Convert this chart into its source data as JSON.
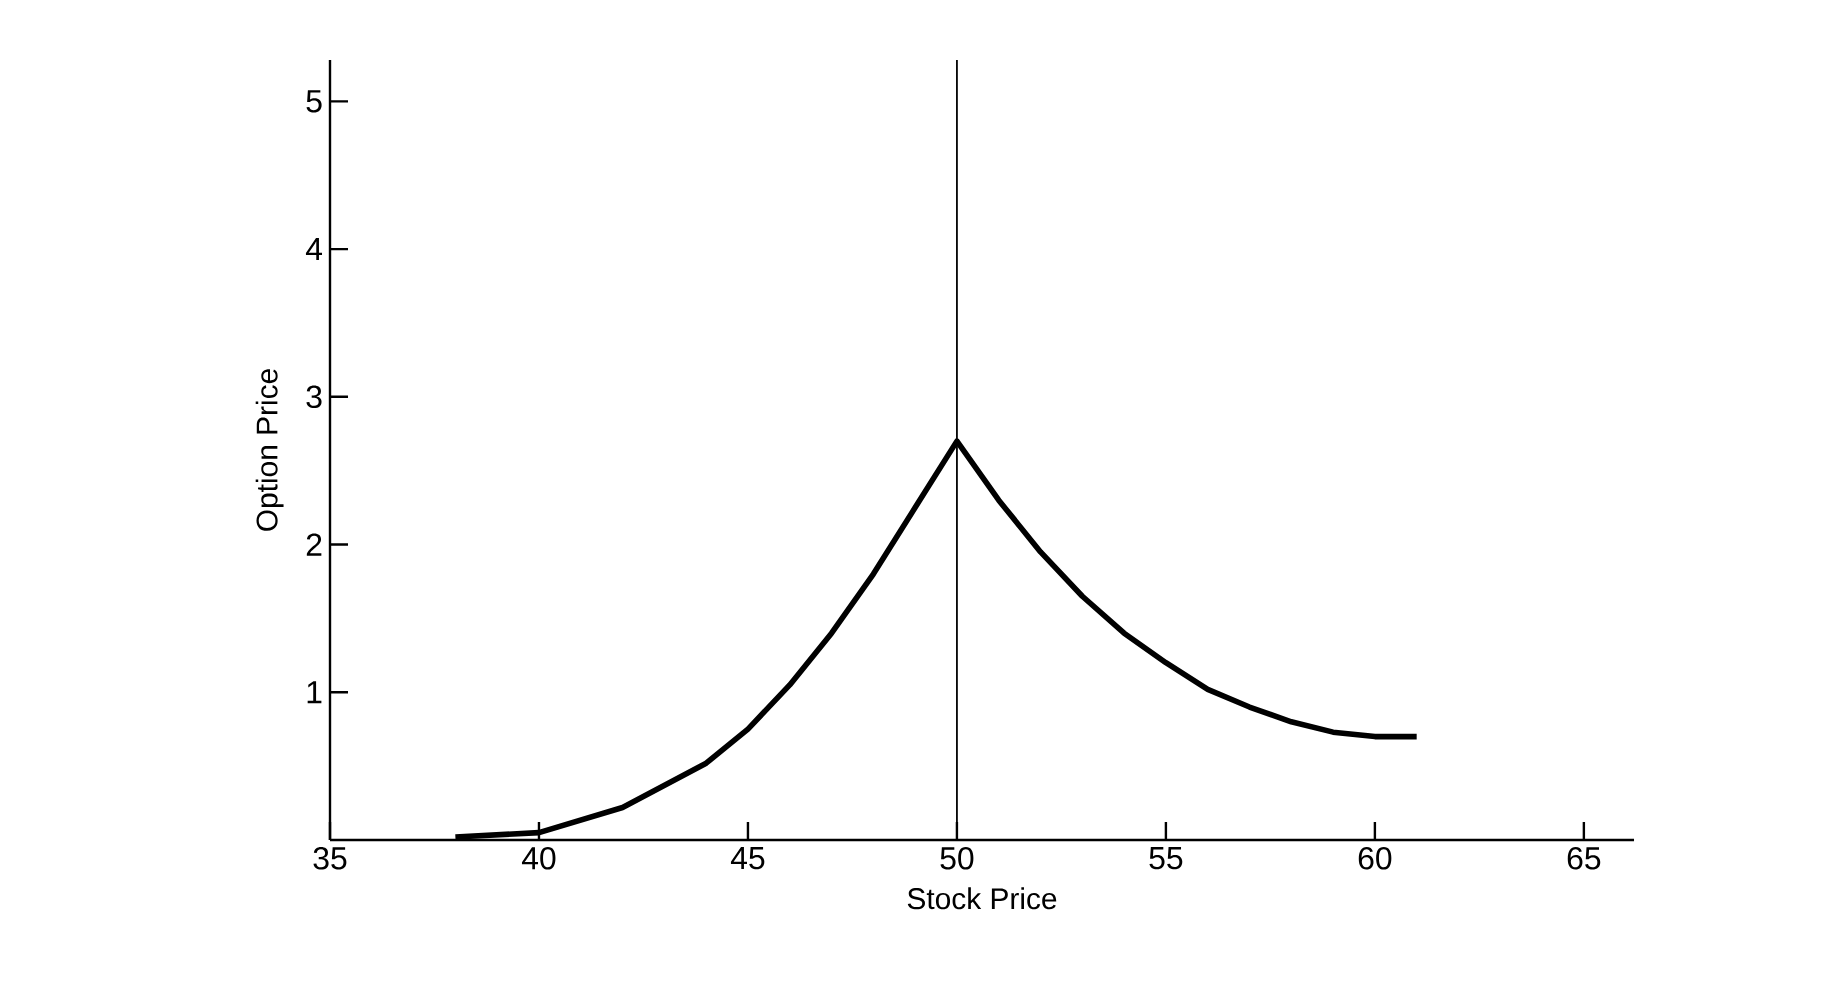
{
  "chart_data": {
    "type": "line",
    "xlabel": "Stock Price",
    "ylabel": "Option Price",
    "xlim": [
      35,
      66.2
    ],
    "ylim": [
      0,
      5.28
    ],
    "xticks": [
      35,
      40,
      45,
      50,
      55,
      60,
      65
    ],
    "yticks": [
      1,
      2,
      3,
      4,
      5
    ],
    "series": [
      {
        "color": "#000000",
        "x": [
          38,
          40,
          42,
          44,
          45,
          46,
          47,
          48,
          49,
          50,
          51,
          52,
          53,
          54,
          55,
          56,
          57,
          58,
          59,
          60,
          61
        ],
        "values": [
          0.02,
          0.05,
          0.22,
          0.52,
          0.75,
          1.05,
          1.4,
          1.8,
          2.25,
          2.7,
          2.3,
          1.95,
          1.65,
          1.4,
          1.2,
          1.02,
          0.9,
          0.8,
          0.73,
          0.7,
          0.7
        ]
      }
    ],
    "ref_lines": [
      {
        "axis": "x",
        "value": 50,
        "color": "#000000"
      }
    ],
    "marker": "none",
    "line_style": "solid"
  }
}
